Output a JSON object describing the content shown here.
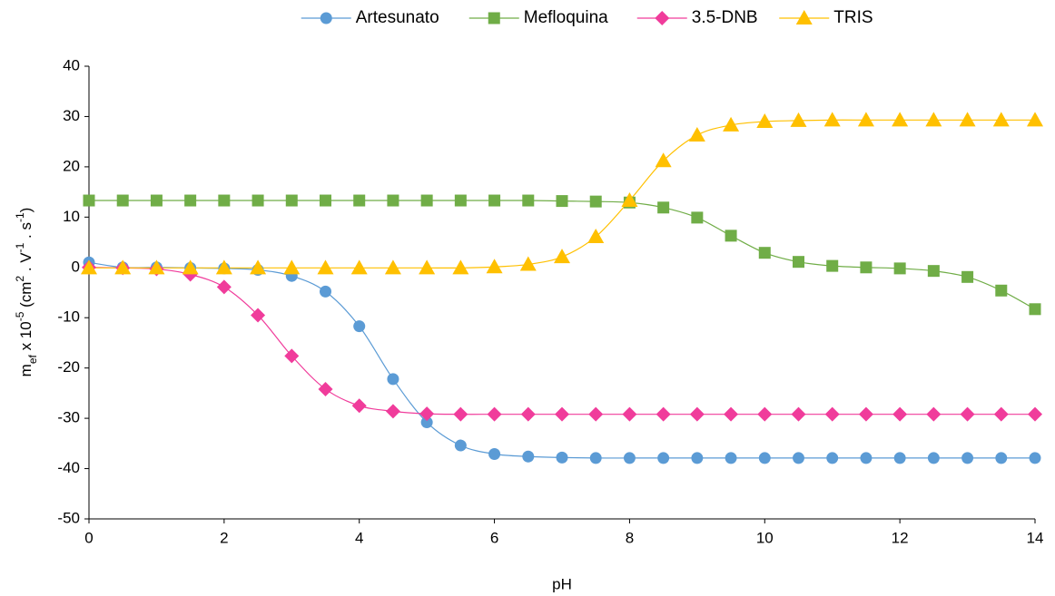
{
  "chart_data": {
    "type": "line",
    "x": [
      0,
      0.5,
      1,
      1.5,
      2,
      2.5,
      3,
      3.5,
      4,
      4.5,
      5,
      5.5,
      6,
      6.5,
      7,
      7.5,
      8,
      8.5,
      9,
      9.5,
      10,
      10.5,
      11,
      11.5,
      12,
      12.5,
      13,
      13.5,
      14
    ],
    "series": [
      {
        "name": "Artesunato",
        "color": "#5B9BD5",
        "marker": "circle",
        "values": [
          1,
          0,
          0,
          -0.1,
          -0.2,
          -0.5,
          -1.7,
          -4.8,
          -11.7,
          -22.2,
          -30.8,
          -35.4,
          -37.1,
          -37.6,
          -37.8,
          -37.9,
          -37.9,
          -37.9,
          -37.9,
          -37.9,
          -37.9,
          -37.9,
          -37.9,
          -37.9,
          -37.9,
          -37.9,
          -37.9,
          -37.9,
          -37.9
        ]
      },
      {
        "name": "Mefloquina",
        "color": "#70AD47",
        "marker": "square",
        "values": [
          13.3,
          13.3,
          13.3,
          13.3,
          13.3,
          13.3,
          13.3,
          13.3,
          13.3,
          13.3,
          13.3,
          13.3,
          13.3,
          13.3,
          13.2,
          13.1,
          12.9,
          11.9,
          9.9,
          6.3,
          2.9,
          1.1,
          0.3,
          0,
          -0.2,
          -0.7,
          -1.9,
          -4.6,
          -8.3
        ]
      },
      {
        "name": "3.5-DNB",
        "color": "#F03C9B",
        "marker": "diamond",
        "values": [
          0,
          -0.1,
          -0.3,
          -1.4,
          -3.9,
          -9.5,
          -17.6,
          -24.2,
          -27.5,
          -28.6,
          -29.1,
          -29.2,
          -29.2,
          -29.2,
          -29.2,
          -29.2,
          -29.2,
          -29.2,
          -29.2,
          -29.2,
          -29.2,
          -29.2,
          -29.2,
          -29.2,
          -29.2,
          -29.2,
          -29.2,
          -29.2,
          -29.2
        ]
      },
      {
        "name": "TRIS",
        "color": "#FFC000",
        "marker": "triangle",
        "values": [
          -0.1,
          -0.1,
          -0.1,
          -0.1,
          -0.1,
          -0.1,
          -0.1,
          -0.1,
          -0.1,
          -0.1,
          -0.1,
          -0.1,
          0.1,
          0.6,
          2.1,
          6.1,
          13.3,
          21.2,
          26.3,
          28.3,
          29.0,
          29.2,
          29.3,
          29.3,
          29.3,
          29.3,
          29.3,
          29.3,
          29.3
        ]
      }
    ],
    "x_label": "pH",
    "y_label": [
      "m",
      "ef",
      " x 10",
      "-5",
      " (cm",
      "2",
      " . V",
      "-1",
      " . s",
      "-1",
      ")"
    ],
    "xlim": [
      0,
      14
    ],
    "xticks": [
      0,
      2,
      4,
      6,
      8,
      10,
      12,
      14
    ],
    "ylim": [
      -50,
      40
    ],
    "yticks": [
      -50,
      -40,
      -30,
      -20,
      -10,
      0,
      10,
      20,
      30,
      40
    ],
    "grid": false,
    "legend": "top"
  }
}
